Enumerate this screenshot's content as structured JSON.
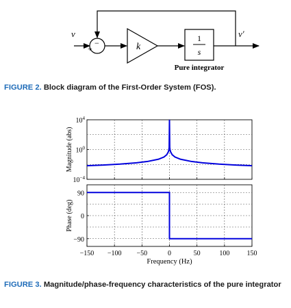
{
  "figure2": {
    "input_label": "v",
    "output_label": "v′",
    "sum_sign_top": "−",
    "sum_sign_left": "+",
    "gain_label": "k",
    "integrator_numerator": "1",
    "integrator_denominator": "s",
    "integrator_caption": "Pure integrator",
    "caption_label": "FIGURE 2.",
    "caption_text": "Block diagram of the First-Order System (FOS)."
  },
  "figure3": {
    "caption_label": "FIGURE 3.",
    "caption_text": "Magnitude/phase-frequency characteristics of the pure integrator"
  },
  "chart_data": [
    {
      "type": "line",
      "ylabel": "Magnitude (abs)",
      "yscale": "log",
      "ylim_exponents": [
        -4,
        4
      ],
      "ytick_exponents": [
        4,
        0,
        -4
      ],
      "ytick_base": "10",
      "xlim": [
        -150,
        150
      ],
      "xticks": [
        -150,
        -100,
        -50,
        0,
        50,
        100,
        150
      ],
      "grid": true,
      "series_color": "#0000dd",
      "x": [
        -150,
        -120,
        -90,
        -60,
        -40,
        -20,
        -10,
        -5,
        -2,
        -1,
        -0.5,
        0.5,
        1,
        2,
        5,
        10,
        20,
        40,
        60,
        90,
        120,
        150
      ],
      "y": [
        0.00667,
        0.00833,
        0.0111,
        0.0167,
        0.025,
        0.05,
        0.1,
        0.2,
        0.5,
        1,
        2,
        2,
        1,
        0.5,
        0.2,
        0.1,
        0.05,
        0.025,
        0.0167,
        0.0111,
        0.00833,
        0.00667
      ]
    },
    {
      "type": "line",
      "ylabel": "Phase (deg)",
      "ylim": [
        -120,
        120
      ],
      "yticks": [
        90,
        0,
        -90
      ],
      "xlim": [
        -150,
        150
      ],
      "xticks": [
        -150,
        -100,
        -50,
        0,
        50,
        100,
        150
      ],
      "xlabel": "Frequency (Hz)",
      "grid": true,
      "series_color": "#0000dd",
      "x": [
        -150,
        0,
        0,
        150
      ],
      "y": [
        90,
        90,
        -90,
        -90
      ]
    }
  ]
}
